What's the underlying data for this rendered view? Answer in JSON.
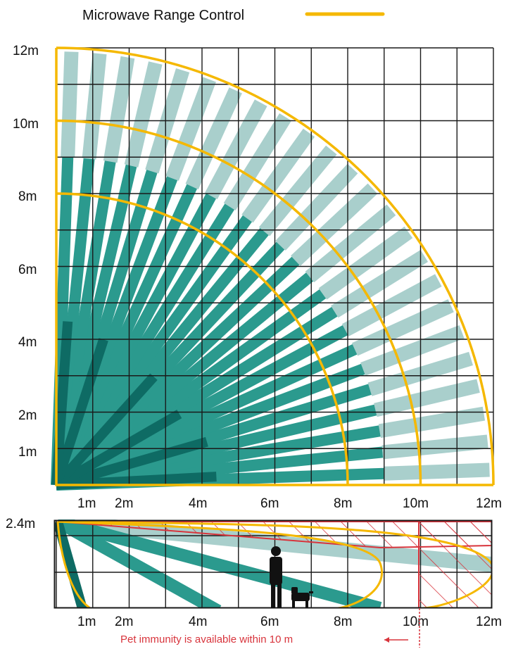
{
  "legend": {
    "label": "Microwave Range Control",
    "line_color": "#f5b800"
  },
  "top_view": {
    "y_tick_labels": [
      "12m",
      "10m",
      "8m",
      "6m",
      "4m",
      "2m",
      "1m"
    ],
    "x_tick_labels": [
      "1m",
      "2m",
      "4m",
      "6m",
      "8m",
      "10m",
      "12m"
    ],
    "range_arcs_m": [
      8,
      10,
      12
    ],
    "grid_extent_m": 12
  },
  "side_view": {
    "height_label": "2.4m",
    "x_tick_labels": [
      "1m",
      "2m",
      "4m",
      "6m",
      "8m",
      "10m",
      "12m"
    ],
    "pet_immunity_note": "Pet immunity is available within 10 m",
    "pet_zone_start_m": 10
  },
  "colors": {
    "dark_teal": "#0e6b64",
    "mid_teal": "#2b9a8e",
    "light_teal": "#a9cfcc",
    "range_line": "#f5b800",
    "pet_zone": "#d8343c",
    "grid": "#1a1a1a"
  },
  "icons": [
    "person-silhouette-icon",
    "dog-silhouette-icon",
    "arrow-left-icon"
  ]
}
